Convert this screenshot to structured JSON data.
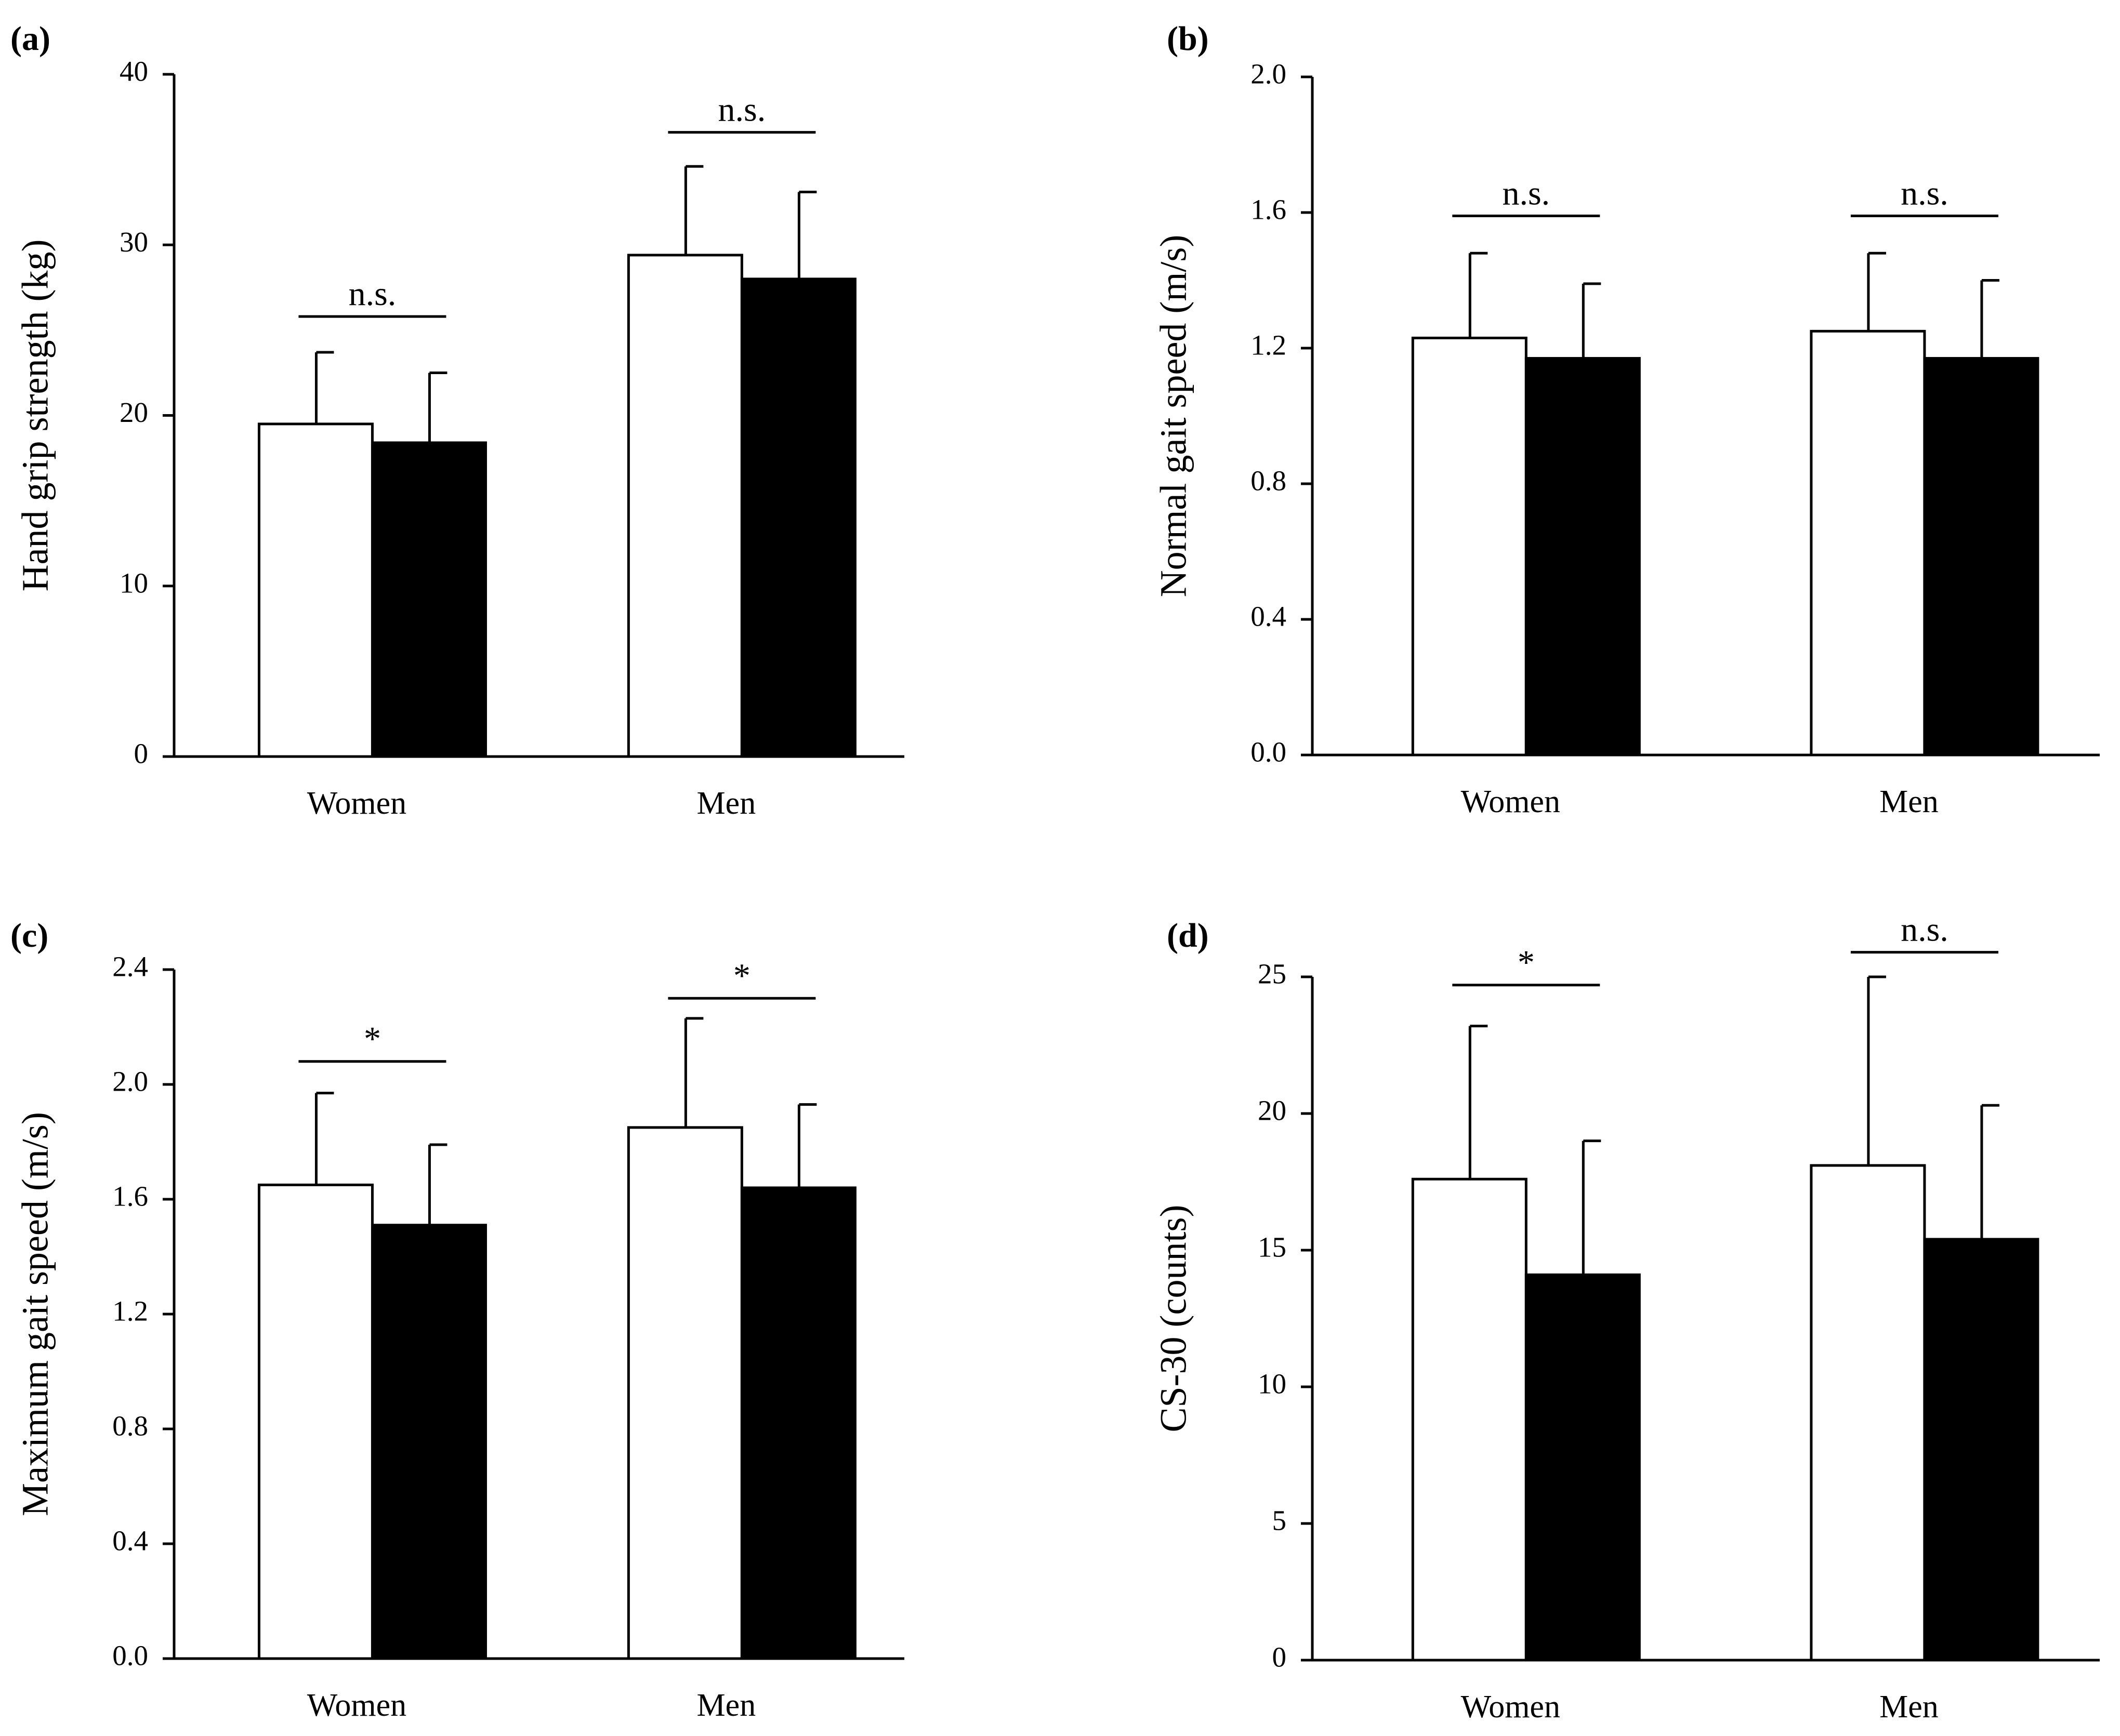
{
  "figure_title": "",
  "legend": {
    "series_names": [
      "White bars",
      "Black bars"
    ]
  },
  "chart_data": [
    {
      "type": "bar",
      "panel_label": "(a)",
      "title": "",
      "xlabel": "",
      "ylabel": "Hand grip strength (kg)",
      "ylim": [
        0,
        40
      ],
      "yticks": [
        0,
        10,
        20,
        30,
        40
      ],
      "ytick_labels": [
        "0",
        "10",
        "20",
        "30",
        "40"
      ],
      "categories": [
        "Women",
        "Men"
      ],
      "series": [
        {
          "name": "White bars",
          "color": "#ffffff",
          "values": [
            19.5,
            29.4
          ],
          "errors": [
            4.2,
            5.2
          ]
        },
        {
          "name": "Black bars",
          "color": "#000000",
          "values": [
            18.4,
            28.0
          ],
          "errors": [
            4.1,
            5.1
          ]
        }
      ],
      "significance": [
        "n.s.",
        "n.s."
      ],
      "sig_levels": [
        25.8,
        36.6
      ]
    },
    {
      "type": "bar",
      "panel_label": "(b)",
      "title": "",
      "xlabel": "",
      "ylabel": "Normal gait speed (m/s)",
      "ylim": [
        0,
        2.0
      ],
      "yticks": [
        0,
        0.4,
        0.8,
        1.2,
        1.6,
        2.0
      ],
      "ytick_labels": [
        "0.0",
        "0.4",
        "0.8",
        "1.2",
        "1.6",
        "2.0"
      ],
      "categories": [
        "Women",
        "Men"
      ],
      "series": [
        {
          "name": "White bars",
          "color": "#ffffff",
          "values": [
            1.23,
            1.25
          ],
          "errors": [
            0.25,
            0.23
          ]
        },
        {
          "name": "Black bars",
          "color": "#000000",
          "values": [
            1.17,
            1.17
          ],
          "errors": [
            0.22,
            0.23
          ]
        }
      ],
      "significance": [
        "n.s.",
        "n.s."
      ],
      "sig_levels": [
        1.59,
        1.59
      ]
    },
    {
      "type": "bar",
      "panel_label": "(c)",
      "title": "",
      "xlabel": "",
      "ylabel": "Maximum gait speed (m/s)",
      "ylim": [
        0,
        2.4
      ],
      "yticks": [
        0,
        0.4,
        0.8,
        1.2,
        1.6,
        2.0,
        2.4
      ],
      "ytick_labels": [
        "0.0",
        "0.4",
        "0.8",
        "1.2",
        "1.6",
        "2.0",
        "2.4"
      ],
      "categories": [
        "Women",
        "Men"
      ],
      "series": [
        {
          "name": "White bars",
          "color": "#ffffff",
          "values": [
            1.65,
            1.85
          ],
          "errors": [
            0.32,
            0.38
          ]
        },
        {
          "name": "Black bars",
          "color": "#000000",
          "values": [
            1.51,
            1.64
          ],
          "errors": [
            0.28,
            0.29
          ]
        }
      ],
      "significance": [
        "*",
        "*"
      ],
      "sig_levels": [
        2.08,
        2.3
      ]
    },
    {
      "type": "bar",
      "panel_label": "(d)",
      "title": "",
      "xlabel": "",
      "ylabel": "CS-30 (counts)",
      "ylim": [
        0,
        25
      ],
      "yticks": [
        0,
        5,
        10,
        15,
        20,
        25
      ],
      "ytick_labels": [
        "0",
        "5",
        "10",
        "15",
        "20",
        "25"
      ],
      "categories": [
        "Women",
        "Men"
      ],
      "series": [
        {
          "name": "White bars",
          "color": "#ffffff",
          "values": [
            17.6,
            18.1
          ],
          "errors": [
            5.6,
            6.9
          ]
        },
        {
          "name": "Black bars",
          "color": "#000000",
          "values": [
            14.1,
            15.4
          ],
          "errors": [
            4.9,
            4.9
          ]
        }
      ],
      "significance": [
        "*",
        "n.s."
      ],
      "sig_levels": [
        24.7,
        25.9
      ]
    }
  ]
}
